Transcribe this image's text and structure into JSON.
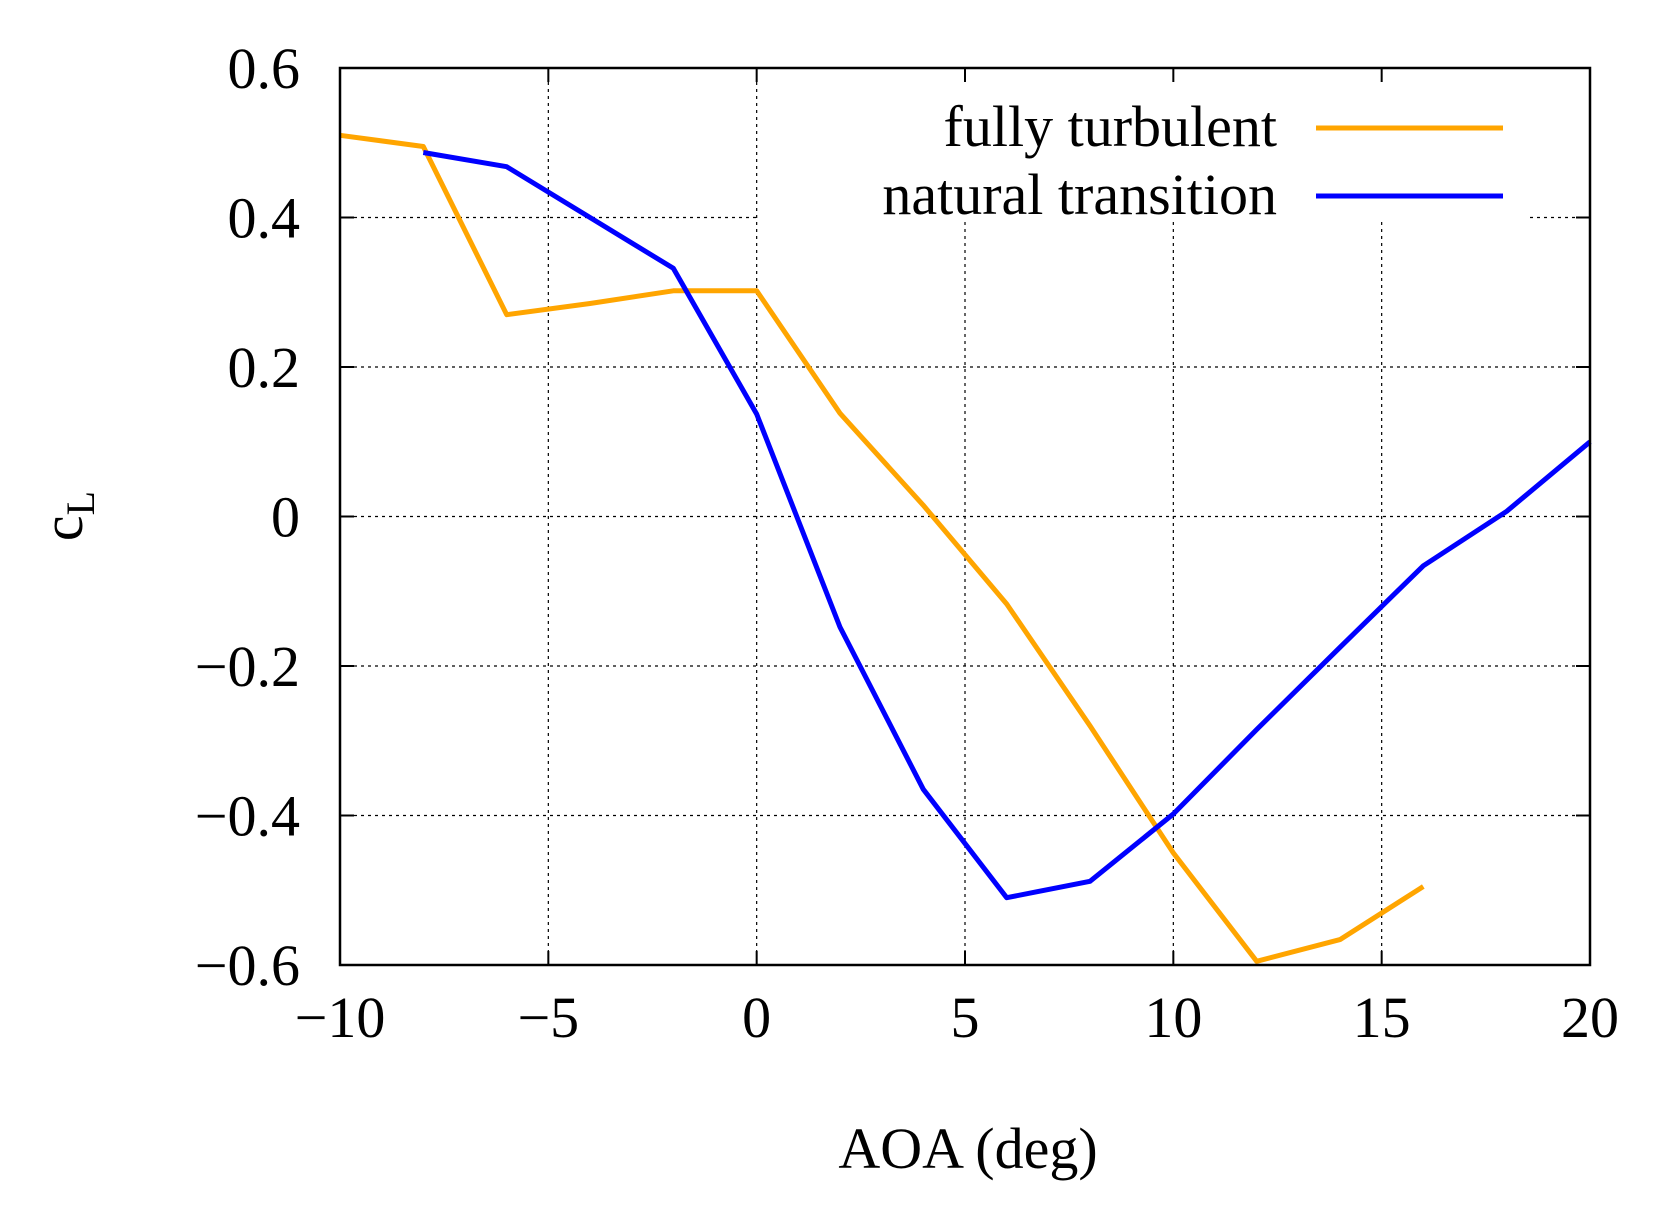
{
  "chart_data": {
    "type": "line",
    "title": "",
    "xlabel": "AOA (deg)",
    "ylabel_main": "c",
    "ylabel_sub": "L",
    "xlim": [
      -10,
      20
    ],
    "ylim": [
      -0.6,
      0.6
    ],
    "xticks": [
      -10,
      -5,
      0,
      5,
      10,
      15,
      20
    ],
    "yticks": [
      -0.6,
      -0.4,
      -0.2,
      0,
      0.2,
      0.4,
      0.6
    ],
    "xtick_labels": [
      "−10",
      "−5",
      "0",
      "5",
      "10",
      "15",
      "20"
    ],
    "ytick_labels": [
      "−0.6",
      "−0.4",
      "−0.2",
      "0",
      "0.2",
      "0.4",
      "0.6"
    ],
    "grid": true,
    "legend_position": "top-right",
    "series": [
      {
        "name": "fully turbulent",
        "color": "#ffa500",
        "x": [
          -10,
          -8,
          -6,
          -4,
          -2,
          0,
          2,
          4,
          6,
          8,
          10,
          12,
          14,
          16
        ],
        "y": [
          0.51,
          0.495,
          0.27,
          0.285,
          0.302,
          0.302,
          0.138,
          0.015,
          -0.117,
          -0.28,
          -0.45,
          -0.595,
          -0.566,
          -0.495
        ]
      },
      {
        "name": "natural transition",
        "color": "#0000ff",
        "x": [
          -8,
          -6,
          -4,
          -2,
          0,
          2,
          4,
          6,
          8,
          10,
          12,
          14,
          16,
          18,
          20
        ],
        "y": [
          0.487,
          0.468,
          0.4,
          0.332,
          0.137,
          -0.148,
          -0.365,
          -0.51,
          -0.488,
          -0.398,
          -0.285,
          -0.175,
          -0.066,
          0.007,
          0.1
        ]
      }
    ]
  }
}
